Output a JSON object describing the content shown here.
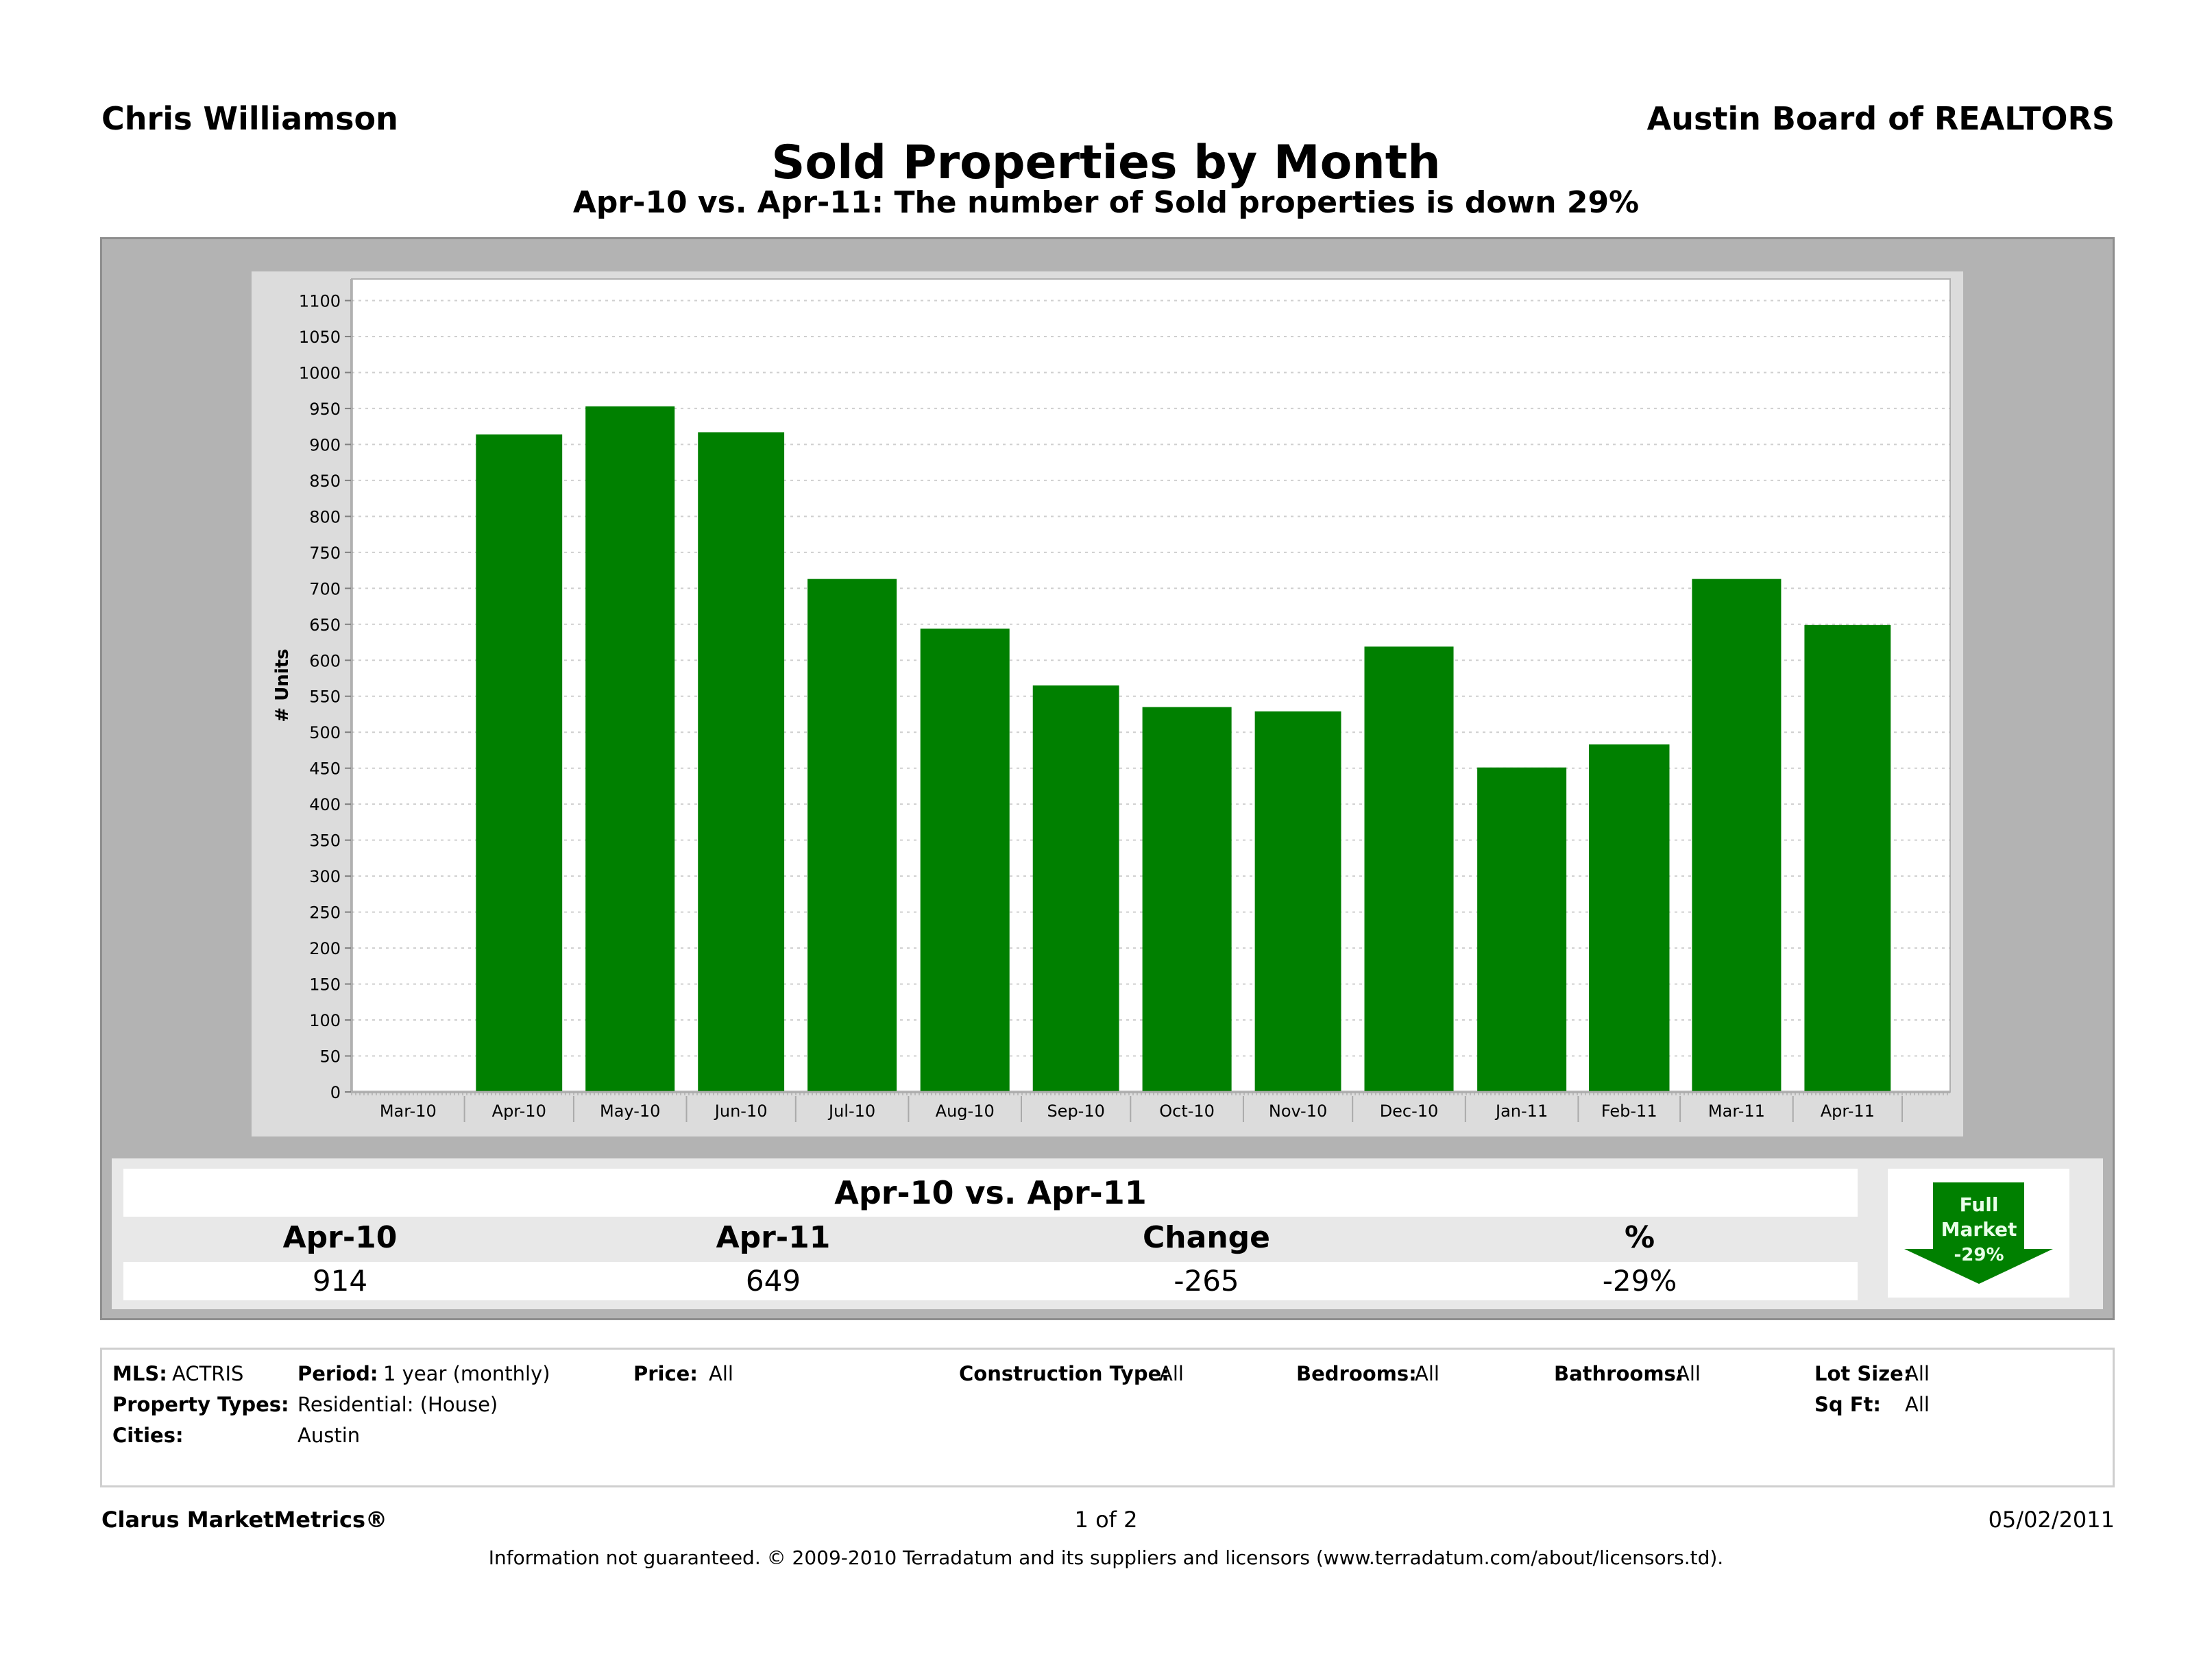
{
  "header": {
    "agent_name": "Chris Williamson",
    "organization": "Austin Board of REALTORS",
    "title": "Sold Properties by Month",
    "subtitle": "Apr-10 vs. Apr-11: The number of Sold properties is down 29%"
  },
  "chart_data": {
    "type": "bar",
    "title": "Sold Properties by Month",
    "xlabel": "",
    "ylabel": "# Units",
    "axis_categories": [
      "Mar-10",
      "Apr-10",
      "May-10",
      "Jun-10",
      "Jul-10",
      "Aug-10",
      "Sep-10",
      "Oct-10",
      "Nov-10",
      "Dec-10",
      "Jan-11",
      "Feb-11",
      "Mar-11",
      "Apr-11"
    ],
    "categories": [
      "Apr-10",
      "May-10",
      "Jun-10",
      "Jul-10",
      "Aug-10",
      "Sep-10",
      "Oct-10",
      "Nov-10",
      "Dec-10",
      "Jan-11",
      "Feb-11",
      "Mar-11",
      "Apr-11"
    ],
    "values": [
      914,
      953,
      917,
      713,
      644,
      565,
      535,
      529,
      619,
      451,
      483,
      713,
      649
    ],
    "ylim": [
      0,
      1130
    ],
    "yticks": [
      0,
      50,
      100,
      150,
      200,
      250,
      300,
      350,
      400,
      450,
      500,
      550,
      600,
      650,
      700,
      750,
      800,
      850,
      900,
      950,
      1000,
      1050,
      1100
    ],
    "grid": true,
    "bar_color": "#008000",
    "legend": "none"
  },
  "summary": {
    "title": "Apr-10 vs. Apr-11",
    "headers": [
      "Apr-10",
      "Apr-11",
      "Change",
      "%"
    ],
    "values": [
      "914",
      "649",
      "-265",
      "-29%"
    ],
    "badge": {
      "line1": "Full",
      "line2": "Market",
      "line3": "-29%",
      "direction": "down",
      "color": "#008000"
    }
  },
  "criteria": {
    "mls_label": "MLS:",
    "mls_value": "ACTRIS",
    "period_label": "Period:",
    "period_value": "1 year (monthly)",
    "price_label": "Price:",
    "price_value": "All",
    "construction_label": "Construction Type:",
    "construction_value": "All",
    "bedrooms_label": "Bedrooms:",
    "bedrooms_value": "All",
    "bathrooms_label": "Bathrooms:",
    "bathrooms_value": "All",
    "lotsize_label": "Lot Size:",
    "lotsize_value": "All",
    "proptypes_label": "Property Types:",
    "proptypes_value": "Residential: (House)",
    "sqft_label": "Sq Ft:",
    "sqft_value": "All",
    "cities_label": "Cities:",
    "cities_value": "Austin"
  },
  "footer": {
    "brand": "Clarus MarketMetrics®",
    "page": "1 of 2",
    "date": "05/02/2011",
    "disclaimer": "Information not guaranteed.  © 2009-2010 Terradatum and its suppliers and licensors (www.terradatum.com/about/licensors.td)."
  }
}
